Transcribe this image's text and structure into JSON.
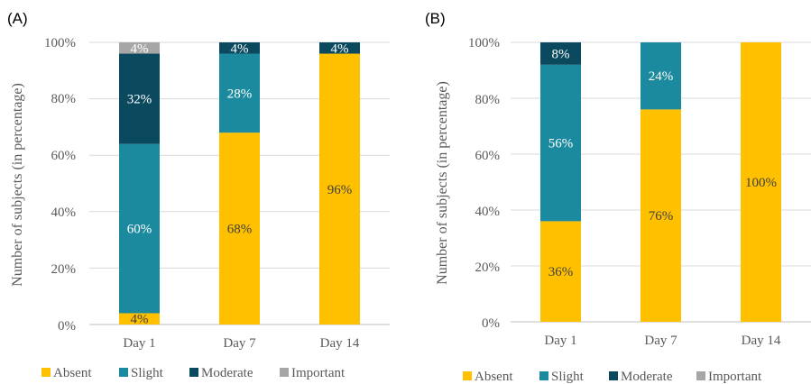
{
  "panels": [
    {
      "label": "(A)",
      "ylabel": "Number of subjects (in percentage)",
      "ytick_labels": [
        "0%",
        "20%",
        "40%",
        "60%",
        "80%",
        "100%"
      ],
      "legend": [
        "Absent",
        "Slight",
        "Moderate",
        "Important"
      ]
    },
    {
      "label": "(B)",
      "ylabel": "Number of subjects (in percentage)",
      "ytick_labels": [
        "0%",
        "20%",
        "40%",
        "60%",
        "80%",
        "100%"
      ],
      "legend": [
        "Absent",
        "Slight",
        "Moderate",
        "Important"
      ]
    }
  ],
  "chart_data": [
    {
      "type": "bar",
      "stacked": true,
      "title": "",
      "xlabel": "",
      "ylabel": "Number of subjects (in percentage)",
      "ylim": [
        0,
        100
      ],
      "grid": true,
      "legend_position": "bottom",
      "categories": [
        "Day 1",
        "Day 7",
        "Day 14"
      ],
      "series": [
        {
          "name": "Absent",
          "color": "#FFC000",
          "values": [
            4,
            68,
            96
          ],
          "labels": [
            "4%",
            "68%",
            "96%"
          ]
        },
        {
          "name": "Slight",
          "color": "#1B8A9E",
          "values": [
            60,
            28,
            0
          ],
          "labels": [
            "60%",
            "28%",
            ""
          ]
        },
        {
          "name": "Moderate",
          "color": "#0B4A5E",
          "values": [
            32,
            4,
            4
          ],
          "labels": [
            "32%",
            "4%",
            "4%"
          ]
        },
        {
          "name": "Important",
          "color": "#A6A6A6",
          "values": [
            4,
            0,
            0
          ],
          "labels": [
            "4%",
            "",
            ""
          ]
        }
      ]
    },
    {
      "type": "bar",
      "stacked": true,
      "title": "",
      "xlabel": "",
      "ylabel": "Number of subjects (in percentage)",
      "ylim": [
        0,
        100
      ],
      "grid": true,
      "legend_position": "bottom",
      "categories": [
        "Day 1",
        "Day 7",
        "Day 14"
      ],
      "series": [
        {
          "name": "Absent",
          "color": "#FFC000",
          "values": [
            36,
            76,
            100
          ],
          "labels": [
            "36%",
            "76%",
            "100%"
          ]
        },
        {
          "name": "Slight",
          "color": "#1B8A9E",
          "values": [
            56,
            24,
            0
          ],
          "labels": [
            "56%",
            "24%",
            ""
          ]
        },
        {
          "name": "Moderate",
          "color": "#0B4A5E",
          "values": [
            8,
            0,
            0
          ],
          "labels": [
            "8%",
            "",
            ""
          ]
        },
        {
          "name": "Important",
          "color": "#A6A6A6",
          "values": [
            0,
            0,
            0
          ],
          "labels": [
            "",
            "",
            ""
          ]
        }
      ]
    }
  ]
}
